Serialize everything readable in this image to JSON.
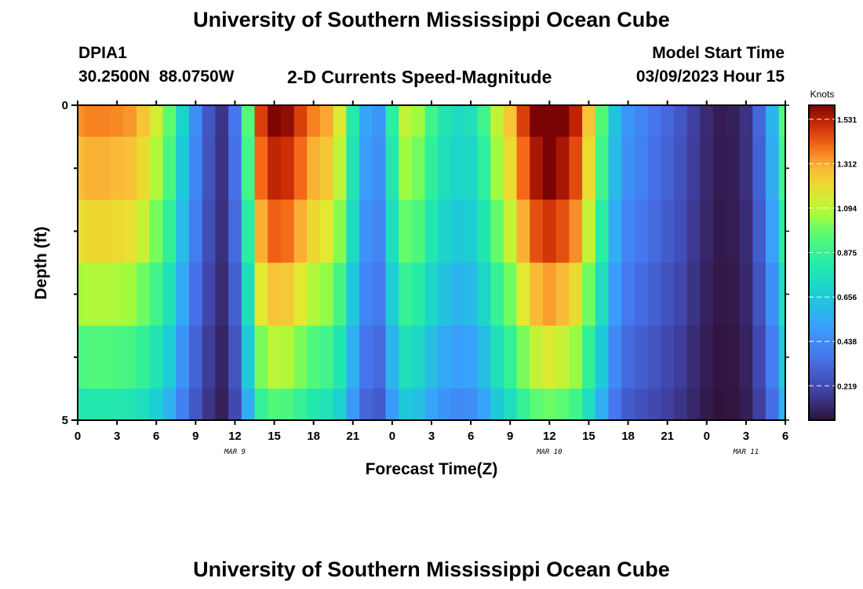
{
  "page_title": "University of Southern Mississippi Ocean Cube",
  "footer_title": "University of Southern Mississippi Ocean Cube",
  "station": {
    "id": "DPIA1",
    "coords": "30.2500N  88.0750W"
  },
  "plot_subtitle": "2-D Currents Speed-Magnitude",
  "model_start": {
    "label": "Model Start Time",
    "value": "03/09/2023 Hour 15"
  },
  "chart_data": {
    "type": "heatmap",
    "title": "2-D Currents Speed-Magnitude",
    "xlabel": "Forecast Time(Z)",
    "ylabel": "Depth (ft)",
    "x_ticks": [
      "0",
      "3",
      "6",
      "9",
      "12",
      "15",
      "18",
      "21",
      "0",
      "3",
      "6",
      "9",
      "12",
      "15",
      "18",
      "21",
      "0",
      "3",
      "6"
    ],
    "x_hours": [
      0,
      3,
      6,
      9,
      12,
      15,
      18,
      21,
      24,
      27,
      30,
      33,
      36,
      39,
      42,
      45,
      48,
      51,
      54
    ],
    "x_range": [
      0,
      54
    ],
    "date_labels": [
      {
        "text": "MAR 9",
        "hour": 12
      },
      {
        "text": "MAR 10",
        "hour": 36
      },
      {
        "text": "MAR 11",
        "hour": 51
      }
    ],
    "y_range": [
      0,
      5
    ],
    "y_ticks": [
      "0",
      "5"
    ],
    "y_tick_values": [
      0,
      5
    ],
    "depth_layers": [
      0.0,
      1.0,
      2.0,
      3.0,
      4.0,
      5.0
    ],
    "colorbar": {
      "unit": "Knots",
      "ticks": [
        "1.531",
        "1.312",
        "1.094",
        "0.875",
        "0.656",
        "0.438",
        "0.219"
      ],
      "tick_values": [
        1.531,
        1.312,
        1.094,
        0.875,
        0.656,
        0.438,
        0.219
      ],
      "range": [
        0.05,
        1.6
      ]
    },
    "layer_scale": [
      1.05,
      1.0,
      0.93,
      0.83,
      0.72,
      0.62
    ],
    "hourly_surface_speed": [
      1.28,
      1.3,
      1.3,
      1.29,
      1.27,
      1.2,
      1.08,
      0.92,
      0.65,
      0.42,
      0.25,
      0.15,
      0.35,
      0.9,
      1.4,
      1.52,
      1.5,
      1.4,
      1.3,
      1.25,
      1.1,
      0.78,
      0.5,
      0.45,
      0.8,
      1.05,
      1.0,
      0.85,
      0.75,
      0.7,
      0.72,
      0.85,
      1.05,
      1.2,
      1.4,
      1.55,
      1.6,
      1.55,
      1.45,
      1.2,
      0.9,
      0.6,
      0.45,
      0.4,
      0.35,
      0.3,
      0.25,
      0.18,
      0.12,
      0.08,
      0.09,
      0.14,
      0.3,
      0.55,
      0.9
    ]
  }
}
